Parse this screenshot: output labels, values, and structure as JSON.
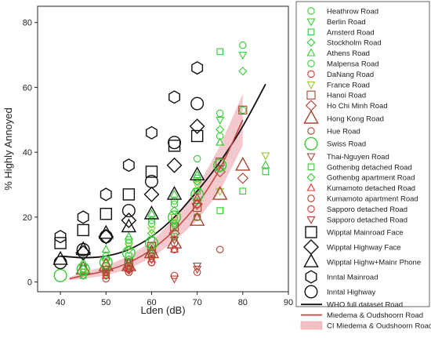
{
  "chart_data": {
    "type": "scatter",
    "xlabel": "Lden (dB)",
    "ylabel": "% Highly Annoyed",
    "xlim": [
      35,
      90
    ],
    "ylim": [
      -3,
      85
    ],
    "xticks": [
      40,
      50,
      60,
      70,
      80,
      90
    ],
    "yticks": [
      0,
      20,
      40,
      60,
      80
    ],
    "grid": false,
    "legend_placement": "right",
    "series": [
      {
        "name": "Heathrow Road",
        "marker": "circle",
        "color": "#33cc33",
        "size": "small",
        "points": [
          [
            45,
            5
          ],
          [
            50,
            7
          ],
          [
            55,
            12
          ],
          [
            60,
            18
          ],
          [
            65,
            24
          ],
          [
            70,
            32
          ],
          [
            75,
            45
          ],
          [
            80,
            53
          ]
        ]
      },
      {
        "name": "Berlin Road",
        "marker": "triangle-down",
        "color": "#33cc33",
        "size": "small",
        "points": [
          [
            50,
            2
          ],
          [
            55,
            5
          ],
          [
            60,
            10
          ],
          [
            65,
            17
          ],
          [
            70,
            28
          ],
          [
            75,
            50
          ],
          [
            80,
            70
          ]
        ]
      },
      {
        "name": "Amsterd Road",
        "marker": "square",
        "color": "#33cc33",
        "size": "small",
        "points": [
          [
            45,
            3
          ],
          [
            50,
            5
          ],
          [
            55,
            8
          ],
          [
            60,
            13
          ],
          [
            65,
            20
          ],
          [
            70,
            28
          ],
          [
            75,
            71
          ],
          [
            80,
            28
          ]
        ]
      },
      {
        "name": "Stockholm Road",
        "marker": "diamond",
        "color": "#33cc33",
        "size": "small",
        "points": [
          [
            45,
            2
          ],
          [
            50,
            4
          ],
          [
            55,
            7
          ],
          [
            60,
            11
          ],
          [
            65,
            18
          ],
          [
            70,
            25
          ],
          [
            75,
            35
          ],
          [
            80,
            65
          ]
        ]
      },
      {
        "name": "Athens Road",
        "marker": "triangle-up",
        "color": "#33cc33",
        "size": "small",
        "points": [
          [
            45,
            6
          ],
          [
            50,
            10
          ],
          [
            55,
            14
          ],
          [
            60,
            21
          ],
          [
            65,
            27
          ],
          [
            70,
            33
          ],
          [
            75,
            43
          ],
          [
            85,
            36
          ]
        ]
      },
      {
        "name": "Malpensa Road",
        "marker": "circle",
        "color": "#33cc33",
        "size": "small",
        "points": [
          [
            45,
            4
          ],
          [
            50,
            8
          ],
          [
            55,
            13
          ],
          [
            60,
            19
          ],
          [
            65,
            25
          ],
          [
            70,
            38
          ],
          [
            75,
            52
          ],
          [
            80,
            73
          ]
        ]
      },
      {
        "name": "DaNang Road",
        "marker": "circle",
        "color": "#dd3333",
        "size": "small",
        "points": [
          [
            50,
            1
          ],
          [
            55,
            3
          ],
          [
            60,
            6
          ],
          [
            65,
            2
          ],
          [
            70,
            3
          ]
        ]
      },
      {
        "name": "France Road",
        "marker": "triangle-down",
        "color": "#99cc33",
        "size": "small",
        "points": [
          [
            45,
            3
          ],
          [
            50,
            6
          ],
          [
            55,
            11
          ],
          [
            60,
            16
          ],
          [
            65,
            20
          ],
          [
            70,
            30
          ],
          [
            75,
            28
          ],
          [
            85,
            39
          ]
        ]
      },
      {
        "name": "Hanoi Road",
        "marker": "square",
        "color": "#aa4433",
        "size": "medium",
        "points": [
          [
            55,
            6
          ],
          [
            60,
            11
          ],
          [
            65,
            17
          ],
          [
            70,
            23
          ],
          [
            75,
            37
          ],
          [
            80,
            53
          ]
        ]
      },
      {
        "name": "Ho Chi Minh Road",
        "marker": "diamond",
        "color": "#aa4433",
        "size": "medium",
        "points": [
          [
            55,
            4
          ],
          [
            60,
            9
          ],
          [
            65,
            15
          ],
          [
            70,
            24
          ],
          [
            75,
            34
          ],
          [
            80,
            32
          ]
        ]
      },
      {
        "name": "Hong Kong Road",
        "marker": "triangle-up",
        "color": "#aa4433",
        "size": "large",
        "points": [
          [
            45,
            4
          ],
          [
            50,
            5
          ],
          [
            55,
            5
          ],
          [
            60,
            9
          ],
          [
            65,
            12
          ],
          [
            70,
            19
          ],
          [
            75,
            27
          ],
          [
            80,
            36
          ]
        ]
      },
      {
        "name": "Hue Road",
        "marker": "circle",
        "color": "#aa4433",
        "size": "small",
        "points": [
          [
            55,
            3
          ],
          [
            60,
            6
          ],
          [
            65,
            10
          ],
          [
            70,
            20
          ],
          [
            75,
            10
          ]
        ]
      },
      {
        "name": "Swiss Road",
        "marker": "circle",
        "color": "#33cc33",
        "size": "large",
        "points": [
          [
            40,
            2
          ],
          [
            45,
            4
          ],
          [
            50,
            6
          ],
          [
            55,
            9
          ],
          [
            60,
            12
          ],
          [
            65,
            20
          ],
          [
            70,
            27
          ],
          [
            75,
            36
          ]
        ]
      },
      {
        "name": "Thai-Nguyen Road",
        "marker": "triangle-down",
        "color": "#aa4433",
        "size": "small",
        "points": [
          [
            50,
            3
          ],
          [
            55,
            4
          ],
          [
            60,
            7
          ],
          [
            65,
            1
          ],
          [
            70,
            4
          ]
        ]
      },
      {
        "name": "Gothenbg detached Road",
        "marker": "square",
        "color": "#33cc33",
        "size": "small",
        "points": [
          [
            45,
            2
          ],
          [
            50,
            3
          ],
          [
            55,
            5
          ],
          [
            60,
            8
          ],
          [
            65,
            14
          ],
          [
            70,
            20
          ],
          [
            75,
            22
          ],
          [
            85,
            34
          ]
        ]
      },
      {
        "name": "Gothenbg apartment Road",
        "marker": "diamond",
        "color": "#33cc33",
        "size": "small",
        "points": [
          [
            45,
            4
          ],
          [
            50,
            7
          ],
          [
            55,
            10
          ],
          [
            60,
            15
          ],
          [
            65,
            22
          ],
          [
            70,
            31
          ],
          [
            75,
            47
          ]
        ]
      },
      {
        "name": "Kumamoto detached Road",
        "marker": "triangle-up",
        "color": "#dd3333",
        "size": "small",
        "points": [
          [
            50,
            2
          ],
          [
            55,
            4
          ],
          [
            60,
            7
          ],
          [
            65,
            10
          ],
          [
            70,
            26
          ]
        ]
      },
      {
        "name": "Kumamoto apartment Road",
        "marker": "circle",
        "color": "#aa4433",
        "size": "small",
        "points": [
          [
            50,
            3
          ],
          [
            55,
            5
          ],
          [
            60,
            8
          ],
          [
            65,
            12
          ],
          [
            70,
            20
          ]
        ]
      },
      {
        "name": "Sapporo detached Road",
        "marker": "circle",
        "color": "#dd3333",
        "size": "small",
        "points": [
          [
            50,
            2
          ],
          [
            55,
            4
          ],
          [
            60,
            6
          ],
          [
            65,
            10
          ],
          [
            70,
            24
          ]
        ]
      },
      {
        "name": "Sapporo detached Road",
        "marker": "triangle-down",
        "color": "#aa4433",
        "size": "small",
        "points": [
          [
            50,
            4
          ],
          [
            55,
            6
          ],
          [
            60,
            9
          ],
          [
            65,
            13
          ],
          [
            70,
            5
          ]
        ]
      },
      {
        "name": "Wipptal Mainroad Face",
        "marker": "square",
        "color": "#111111",
        "size": "large",
        "points": [
          [
            40,
            12
          ],
          [
            45,
            16
          ],
          [
            50,
            21
          ],
          [
            55,
            27
          ],
          [
            60,
            34
          ],
          [
            65,
            42
          ],
          [
            70,
            45
          ]
        ]
      },
      {
        "name": "Wipptal Highway Face",
        "marker": "diamond",
        "color": "#111111",
        "size": "large",
        "points": [
          [
            45,
            9
          ],
          [
            50,
            14
          ],
          [
            55,
            19
          ],
          [
            60,
            27
          ],
          [
            65,
            36
          ],
          [
            70,
            48
          ]
        ]
      },
      {
        "name": "Wipptal Highw+Mainr Phone",
        "marker": "triangle-up",
        "color": "#111111",
        "size": "large",
        "points": [
          [
            40,
            7
          ],
          [
            45,
            10
          ],
          [
            50,
            15
          ],
          [
            55,
            17
          ],
          [
            60,
            21
          ],
          [
            65,
            27
          ],
          [
            70,
            33
          ]
        ]
      },
      {
        "name": "Inntal Mainroad",
        "marker": "hexagon",
        "color": "#111111",
        "size": "large",
        "points": [
          [
            40,
            14
          ],
          [
            45,
            20
          ],
          [
            50,
            27
          ],
          [
            55,
            36
          ],
          [
            60,
            46
          ],
          [
            65,
            57
          ],
          [
            70,
            66
          ]
        ]
      },
      {
        "name": "Inntal Highway",
        "marker": "circle",
        "color": "#111111",
        "size": "large",
        "points": [
          [
            40,
            6
          ],
          [
            45,
            10
          ],
          [
            50,
            14
          ],
          [
            55,
            22
          ],
          [
            60,
            31
          ],
          [
            65,
            43
          ],
          [
            70,
            55
          ]
        ]
      }
    ],
    "curves": [
      {
        "name": "WHO full dataset Road",
        "color": "#111111",
        "x": [
          40,
          45,
          50,
          55,
          60,
          65,
          70,
          75,
          80,
          85
        ],
        "y": [
          8,
          7.5,
          8,
          10,
          14,
          20,
          28,
          37,
          48,
          61
        ]
      },
      {
        "name": "Miedema & Oudshoorn Road",
        "color": "#c84444",
        "x": [
          42,
          45,
          50,
          55,
          60,
          65,
          70,
          75,
          80
        ],
        "y": [
          1,
          2,
          3.5,
          6,
          10,
          16,
          24,
          35,
          50
        ]
      }
    ],
    "bands": [
      {
        "name": "CI Miedema & Oudshoorn Road",
        "color": "#f2c0c4",
        "x": [
          42,
          45,
          50,
          55,
          60,
          65,
          70,
          75,
          80
        ],
        "lower": [
          0.5,
          1,
          2,
          4,
          7.5,
          12.5,
          19,
          28,
          42
        ],
        "upper": [
          1.5,
          3,
          5,
          8,
          12.5,
          19.5,
          29,
          42,
          58
        ]
      }
    ]
  }
}
